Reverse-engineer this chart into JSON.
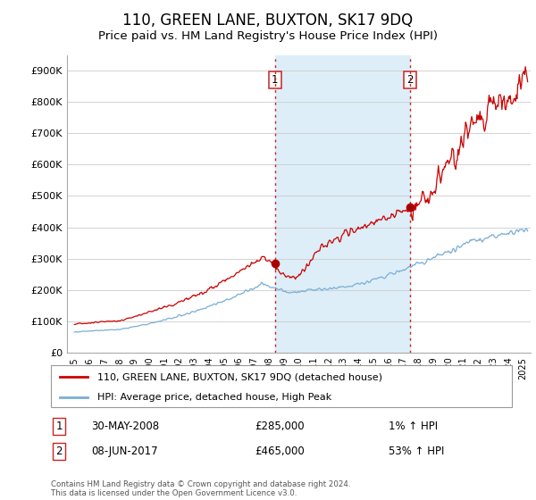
{
  "title": "110, GREEN LANE, BUXTON, SK17 9DQ",
  "subtitle": "Price paid vs. HM Land Registry's House Price Index (HPI)",
  "title_fontsize": 12,
  "subtitle_fontsize": 9.5,
  "ylabel_ticks": [
    "£0",
    "£100K",
    "£200K",
    "£300K",
    "£400K",
    "£500K",
    "£600K",
    "£700K",
    "£800K",
    "£900K"
  ],
  "ytick_values": [
    0,
    100000,
    200000,
    300000,
    400000,
    500000,
    600000,
    700000,
    800000,
    900000
  ],
  "ylim": [
    0,
    950000
  ],
  "xlim_start": 1994.5,
  "xlim_end": 2025.5,
  "xtick_years": [
    1995,
    1996,
    1997,
    1998,
    1999,
    2000,
    2001,
    2002,
    2003,
    2004,
    2005,
    2006,
    2007,
    2008,
    2009,
    2010,
    2011,
    2012,
    2013,
    2014,
    2015,
    2016,
    2017,
    2018,
    2019,
    2020,
    2021,
    2022,
    2023,
    2024,
    2025
  ],
  "background_color": "#ffffff",
  "plot_bg_color": "#ffffff",
  "grid_color": "#cccccc",
  "shaded_region_color": "#ddeef8",
  "sale1_x": 2008.41,
  "sale1_y": 285000,
  "sale1_label": "1",
  "sale2_x": 2017.44,
  "sale2_y": 465000,
  "sale2_label": "2",
  "sale_marker_color": "#aa0000",
  "sale_marker_size": 7,
  "vline_color": "#cc2222",
  "legend_label_red": "110, GREEN LANE, BUXTON, SK17 9DQ (detached house)",
  "legend_label_blue": "HPI: Average price, detached house, High Peak",
  "table_row1_label": "1",
  "table_row1_date": "30-MAY-2008",
  "table_row1_price": "£285,000",
  "table_row1_hpi": "1% ↑ HPI",
  "table_row2_label": "2",
  "table_row2_date": "08-JUN-2017",
  "table_row2_price": "£465,000",
  "table_row2_hpi": "53% ↑ HPI",
  "footer": "Contains HM Land Registry data © Crown copyright and database right 2024.\nThis data is licensed under the Open Government Licence v3.0.",
  "red_line_color": "#cc0000",
  "blue_line_color": "#7aaed6"
}
